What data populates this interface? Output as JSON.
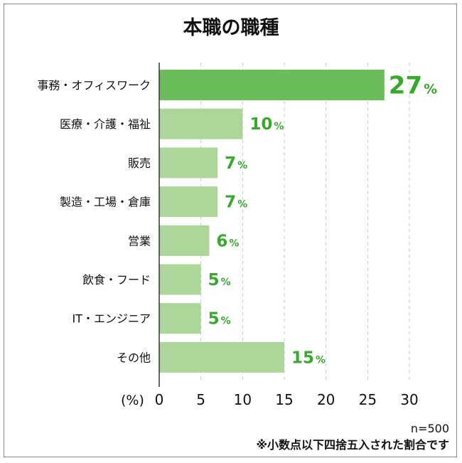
{
  "chart_data": {
    "type": "bar",
    "orientation": "horizontal",
    "title": "本職の職種",
    "categories": [
      "事務・オフィスワーク",
      "医療・介護・福祉",
      "販売",
      "製造・工場・倉庫",
      "営業",
      "飲食・フード",
      "IT・エンジニア",
      "その他"
    ],
    "values": [
      27,
      10,
      7,
      7,
      6,
      5,
      5,
      15
    ],
    "value_suffix": "%",
    "xlim": [
      0,
      30
    ],
    "xticks": [
      0,
      5,
      10,
      15,
      20,
      25,
      30
    ],
    "tick_labels": [
      "0",
      "5",
      "10",
      "15",
      "20",
      "25",
      "30"
    ],
    "x_unit_label": "(%)",
    "grid": "vertical-dashed",
    "highlight_index": 0,
    "colors": {
      "highlight_bar": "#6abd5a",
      "bar": "#acd69a",
      "value_text": "#3aa82e",
      "grid": "#c8c8c8",
      "axis": "#333333"
    }
  },
  "notes": {
    "sample_size": "n=500",
    "rounding": "※小数点以下四捨五入された割合です"
  }
}
